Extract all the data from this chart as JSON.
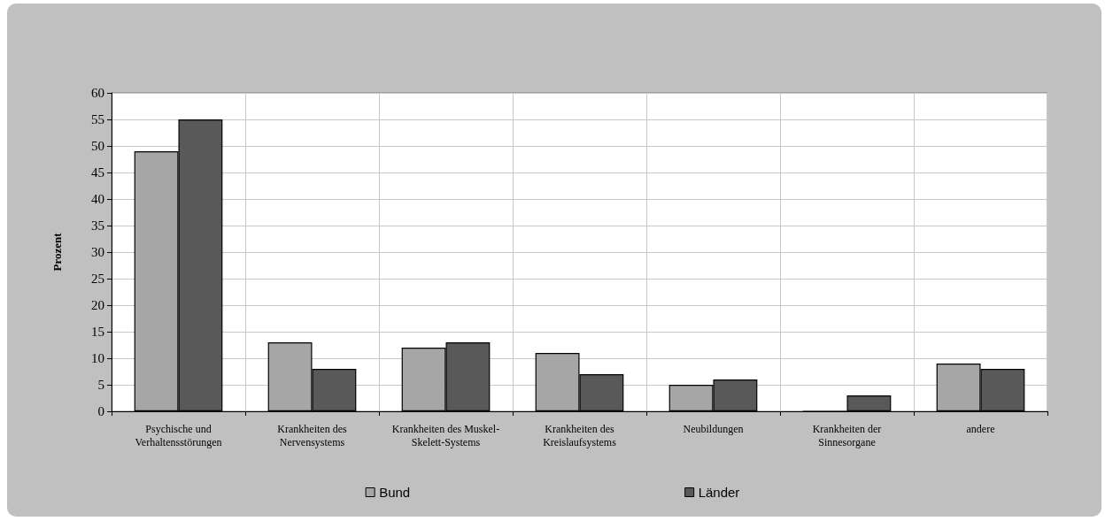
{
  "chart_data": {
    "type": "bar",
    "ylabel": "Prozent",
    "categories": [
      "Psychische und\nVerhaltensstörungen",
      "Krankheiten des\nNervensystems",
      "Krankheiten des Muskel-\nSkelett-Systems",
      "Krankheiten des\nKreislaufsystems",
      "Neubildungen",
      "Krankheiten der\nSinnesorgane",
      "andere"
    ],
    "series": [
      {
        "name": "Bund",
        "color": "#a6a6a6",
        "values": [
          49,
          13,
          12,
          11,
          5,
          0,
          9
        ]
      },
      {
        "name": "Länder",
        "color": "#595959",
        "values": [
          55,
          8,
          13,
          7,
          6,
          3,
          8
        ]
      }
    ],
    "ylim": [
      0,
      60
    ],
    "yticks": [
      0,
      5,
      10,
      15,
      20,
      25,
      30,
      35,
      40,
      45,
      50,
      55,
      60
    ],
    "grid": true,
    "legend": "bottom"
  }
}
